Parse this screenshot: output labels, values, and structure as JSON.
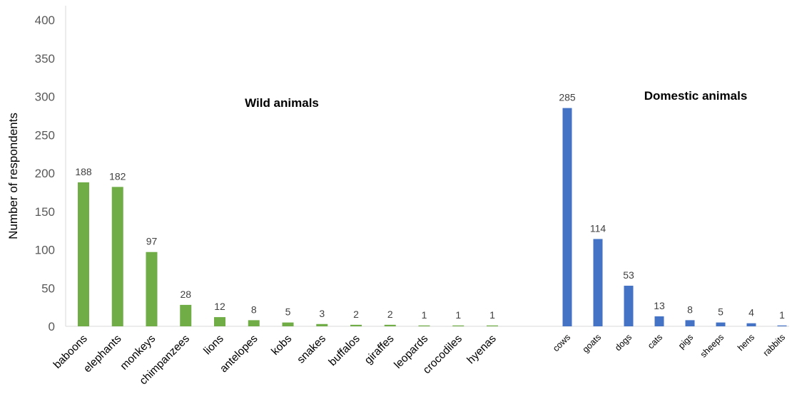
{
  "chart_data": {
    "type": "bar",
    "ylabel": "Number of respondents",
    "ylim": [
      0,
      400
    ],
    "yticks": [
      0,
      50,
      100,
      150,
      200,
      250,
      300,
      350,
      400
    ],
    "grid": false,
    "groups": [
      {
        "name": "Wild animals",
        "color": "#70ad47",
        "categories": [
          "baboons",
          "elephants",
          "monkeys",
          "chimpanzees",
          "lions",
          "antelopes",
          "kobs",
          "snakes",
          "buffalos",
          "giraffes",
          "leopards",
          "crocodiles",
          "hyenas"
        ],
        "values": [
          188,
          182,
          97,
          28,
          12,
          8,
          5,
          3,
          2,
          2,
          1,
          1,
          1
        ]
      },
      {
        "name": "Domestic animals",
        "color": "#4472c4",
        "categories": [
          "cows",
          "goats",
          "dogs",
          "cats",
          "pigs",
          "sheeps",
          "hens",
          "rabbits"
        ],
        "values": [
          285,
          114,
          53,
          13,
          8,
          5,
          4,
          1
        ]
      }
    ]
  }
}
